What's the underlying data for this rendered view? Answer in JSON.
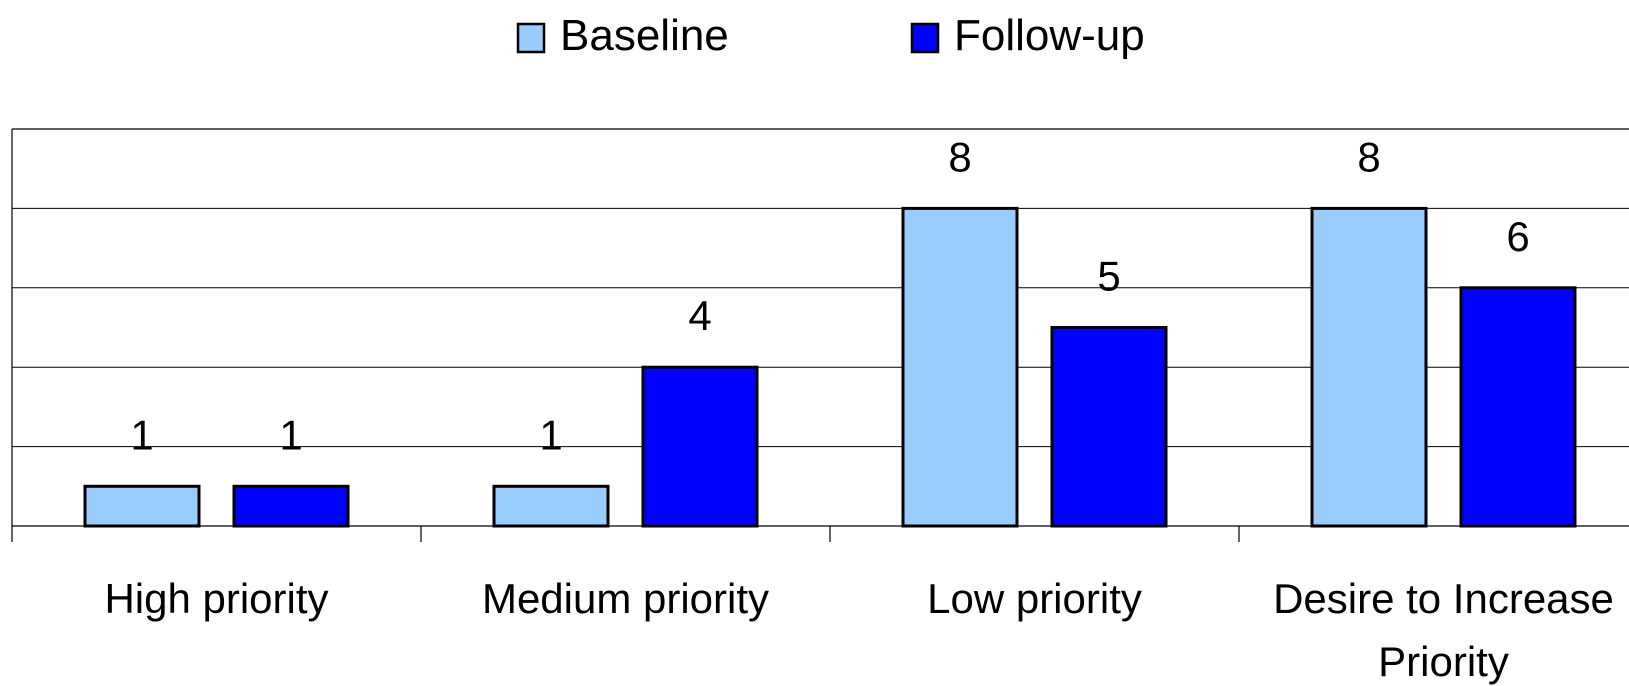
{
  "chart_data": {
    "type": "bar",
    "categories": [
      "High priority",
      "Medium priority",
      "Low priority",
      "Desire to Increase Priority"
    ],
    "category_label_lines": [
      [
        "High priority"
      ],
      [
        "Medium priority"
      ],
      [
        "Low priority"
      ],
      [
        "Desire to Increase",
        "Priority"
      ]
    ],
    "series": [
      {
        "name": "Baseline",
        "values": [
          1,
          1,
          8,
          8
        ],
        "color": "#99CCFF"
      },
      {
        "name": "Follow-up",
        "values": [
          1,
          4,
          5,
          6
        ],
        "color": "#0000FF"
      }
    ],
    "ylim": [
      0,
      10
    ],
    "grid": true,
    "legend": "top-center",
    "data_labels": true
  }
}
